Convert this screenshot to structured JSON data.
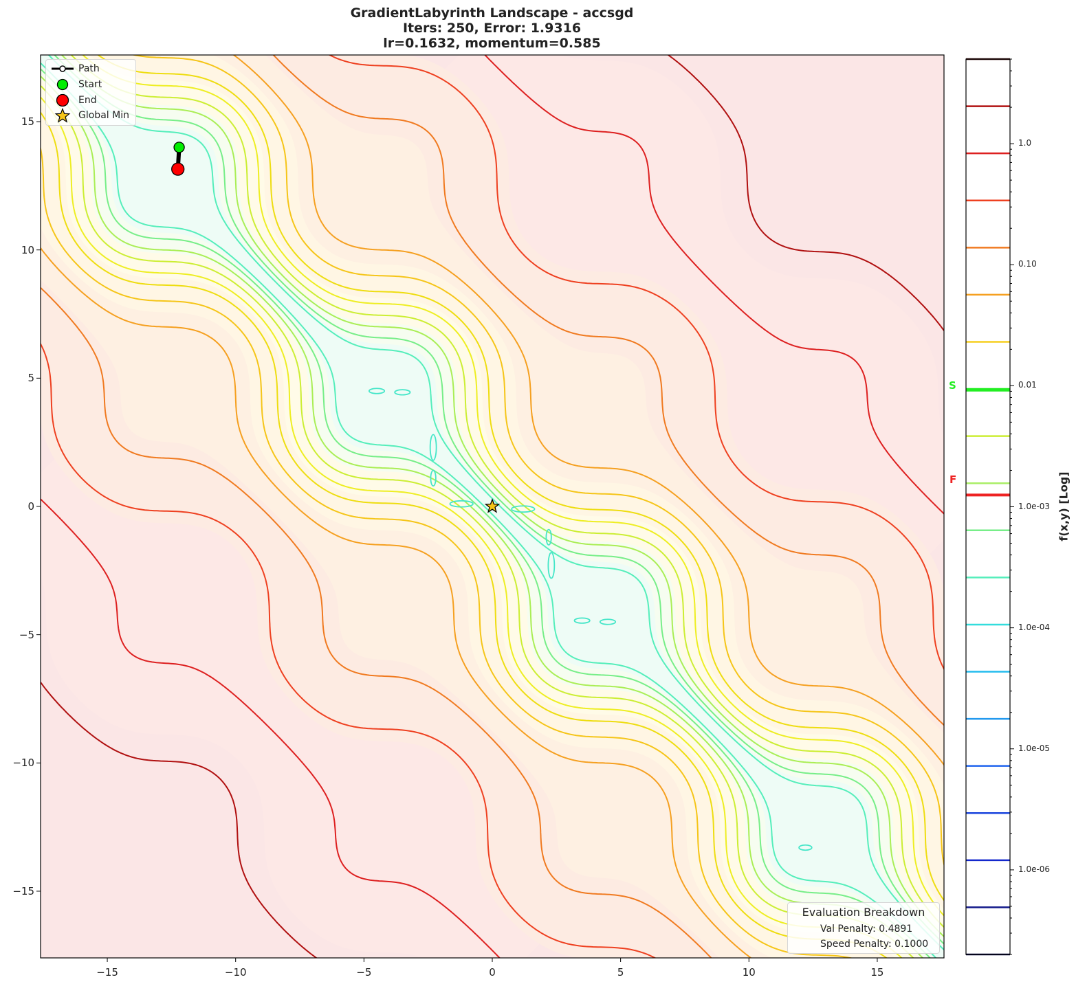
{
  "title": {
    "line1": "GradientLabyrinth Landscape - accsgd",
    "line2": "Iters: 250, Error: 1.9316",
    "line3": "lr=0.1632, momentum=0.585"
  },
  "legend": {
    "items": [
      {
        "label": "Path",
        "symbol": "line-with-circle",
        "color": "#000000"
      },
      {
        "label": "Start",
        "symbol": "circle",
        "color": "#00ee00"
      },
      {
        "label": "End",
        "symbol": "circle",
        "color": "#ff0000"
      },
      {
        "label": "Global Min",
        "symbol": "star",
        "color": "#f5c518"
      }
    ]
  },
  "eval_box": {
    "header": "Evaluation Breakdown",
    "val_penalty": "Val Penalty: 0.4891",
    "speed_penalty": "Speed Penalty: 0.1000"
  },
  "colorbar": {
    "label": "f(x,y) [Log]",
    "tick_labels": [
      "1.0",
      "0.10",
      "0.01",
      "1.0e-03",
      "1.0e-04",
      "1.0e-05",
      "1.0e-06"
    ],
    "markers": [
      {
        "label": "S",
        "color": "#22ee22",
        "value": 0.0092
      },
      {
        "label": "F",
        "color": "#ee2222",
        "value": 0.00125
      }
    ]
  },
  "chart_data": {
    "type": "contour",
    "title": "GradientLabyrinth Landscape - accsgd\nIters: 250, Error: 1.9316\nlr=0.1632, momentum=0.585",
    "xlabel": "",
    "ylabel": "",
    "xlim": [
      -17.6,
      17.6
    ],
    "ylim": [
      -17.6,
      17.6
    ],
    "xticks": [
      -15,
      -10,
      -5,
      0,
      5,
      10,
      15
    ],
    "yticks": [
      -15,
      -10,
      -5,
      0,
      5,
      10,
      15
    ],
    "grid": false,
    "colorbar": {
      "scale": "log",
      "label": "f(x,y) [Log]",
      "range": [
        2e-07,
        5.0
      ],
      "ticks": [
        1.0,
        0.1,
        0.01,
        0.001,
        0.0001,
        1e-05,
        1e-06
      ],
      "level_colors_top_to_bottom": [
        "#3a0a0a",
        "#b01010",
        "#dd2020",
        "#ee4020",
        "#f07a20",
        "#f5a020",
        "#f5cf20",
        "#22ee22",
        "#ccee33",
        "#aaee66",
        "#77ee88",
        "#55eebb",
        "#33dddd",
        "#22bbee",
        "#2299ee",
        "#2266ee",
        "#1a44dd",
        "#1428cc",
        "#12188a",
        "#0a0a40"
      ]
    },
    "path": {
      "start": [
        -12.2,
        14.0
      ],
      "end": [
        -12.25,
        13.15
      ]
    },
    "start_point": [
      -12.2,
      14.0
    ],
    "end_point": [
      -12.25,
      13.15
    ],
    "global_min": [
      0,
      0
    ],
    "annotations": [
      "Evaluation Breakdown",
      "Val Penalty: 0.4891",
      "Speed Penalty: 0.1000"
    ],
    "legend": [
      "Path",
      "Start",
      "End",
      "Global Min"
    ],
    "legend_position": "upper left"
  },
  "contours": [
    {
      "c": -23.8,
      "color": "#b01010"
    },
    {
      "c": -17.6,
      "color": "#dd2020"
    },
    {
      "c": -13.1,
      "color": "#ee4020"
    },
    {
      "c": -9.6,
      "color": "#f07a20"
    },
    {
      "c": -6.9,
      "color": "#f5a020"
    },
    {
      "c": -5.2,
      "color": "#f5c518"
    },
    {
      "c": -4.0,
      "color": "#eedd10"
    },
    {
      "c": -3.1,
      "color": "#eeee22"
    },
    {
      "c": -2.3,
      "color": "#ccee33"
    },
    {
      "c": -1.6,
      "color": "#aaee55"
    },
    {
      "c": -1.05,
      "color": "#77ee88"
    },
    {
      "c": -0.6,
      "color": "#55eebb"
    },
    {
      "c": 0.6,
      "color": "#55eebb"
    },
    {
      "c": 1.05,
      "color": "#77ee88"
    },
    {
      "c": 1.6,
      "color": "#aaee55"
    },
    {
      "c": 2.3,
      "color": "#ccee33"
    },
    {
      "c": 3.1,
      "color": "#eeee22"
    },
    {
      "c": 4.0,
      "color": "#eedd10"
    },
    {
      "c": 5.2,
      "color": "#f5c518"
    },
    {
      "c": 6.9,
      "color": "#f5a020"
    },
    {
      "c": 9.6,
      "color": "#f07a20"
    },
    {
      "c": 13.1,
      "color": "#ee4020"
    },
    {
      "c": 17.6,
      "color": "#dd2020"
    },
    {
      "c": 23.8,
      "color": "#b01010"
    }
  ]
}
